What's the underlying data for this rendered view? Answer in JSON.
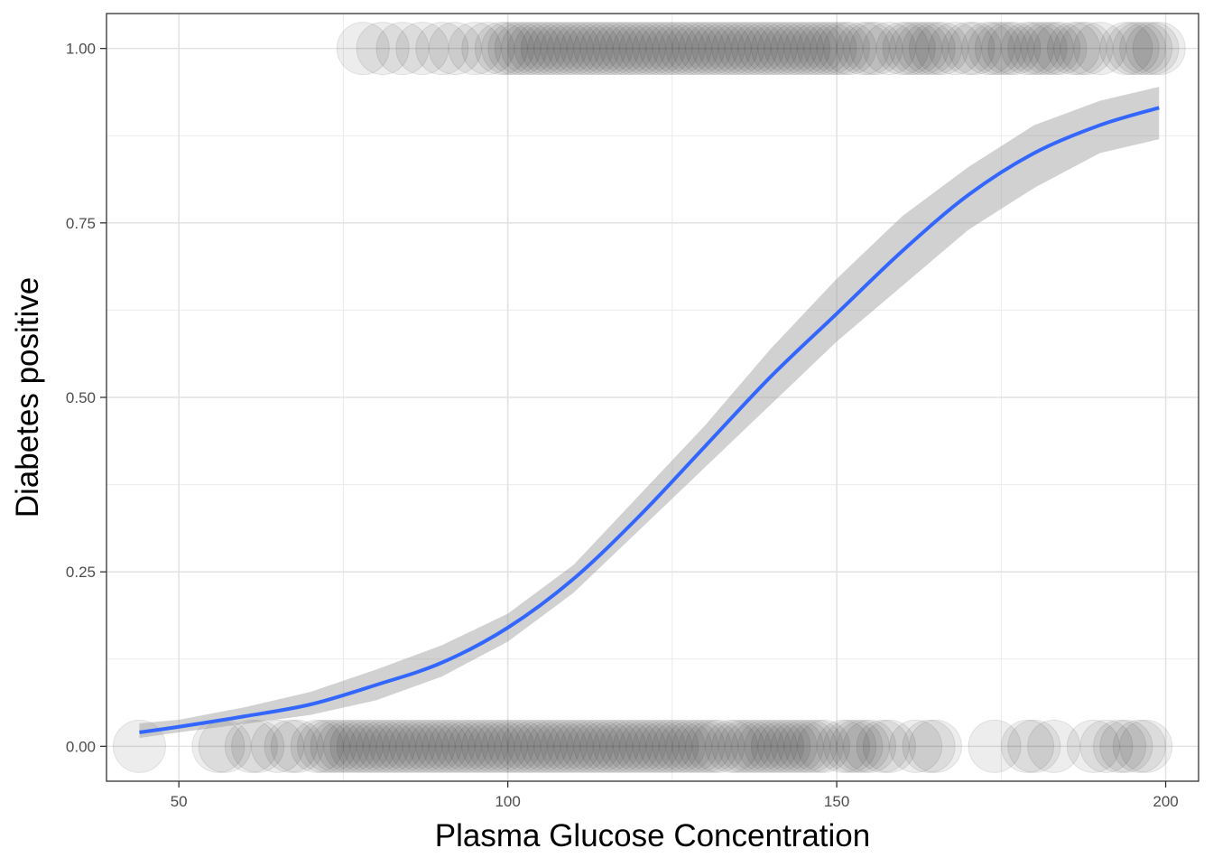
{
  "chart_data": {
    "type": "scatter",
    "title": "",
    "xlabel": "Plasma Glucose Concentration",
    "ylabel": "Diabetes positive",
    "xlim": [
      39,
      205
    ],
    "ylim": [
      -0.05,
      1.05
    ],
    "x_ticks": [
      50,
      100,
      150,
      200
    ],
    "x_tick_labels": [
      "50",
      "100",
      "150",
      "200"
    ],
    "y_ticks": [
      0,
      0.25,
      0.5,
      0.75,
      1
    ],
    "y_tick_labels": [
      "0.00",
      "0.25",
      "0.50",
      "0.75",
      "1.00"
    ],
    "grid": true,
    "legend": "none",
    "series": [
      {
        "kind": "points",
        "y": 1,
        "x": [
          78,
          81,
          84,
          87,
          90,
          92,
          95,
          97,
          99,
          100,
          101,
          102,
          103,
          104,
          105,
          106,
          107,
          108,
          109,
          110,
          111,
          112,
          113,
          114,
          115,
          116,
          117,
          118,
          119,
          120,
          121,
          122,
          123,
          124,
          125,
          126,
          127,
          128,
          129,
          130,
          131,
          132,
          133,
          134,
          135,
          136,
          137,
          138,
          139,
          140,
          141,
          142,
          143,
          144,
          145,
          146,
          147,
          148,
          149,
          150,
          151,
          152,
          154,
          155,
          156,
          158,
          160,
          161,
          162,
          163,
          164,
          165,
          166,
          168,
          170,
          171,
          173,
          174,
          175,
          176,
          177,
          179,
          180,
          181,
          182,
          183,
          184,
          186,
          187,
          188,
          190,
          194,
          195,
          196,
          197,
          198,
          199
        ]
      },
      {
        "kind": "points",
        "y": 0,
        "x": [
          44,
          56,
          57,
          61,
          62,
          65,
          67,
          68,
          71,
          72,
          73,
          74,
          75,
          76,
          77,
          78,
          79,
          80,
          81,
          82,
          83,
          84,
          85,
          86,
          87,
          88,
          89,
          90,
          91,
          92,
          93,
          94,
          95,
          96,
          97,
          98,
          99,
          100,
          101,
          102,
          103,
          104,
          105,
          106,
          107,
          108,
          109,
          110,
          111,
          112,
          113,
          114,
          115,
          116,
          117,
          118,
          119,
          120,
          121,
          122,
          123,
          124,
          125,
          126,
          127,
          128,
          129,
          130,
          131,
          132,
          134,
          135,
          136,
          137,
          138,
          139,
          140,
          141,
          142,
          143,
          144,
          145,
          146,
          147,
          148,
          151,
          152,
          153,
          154,
          155,
          157,
          158,
          162,
          164,
          165,
          174,
          179,
          180,
          183,
          189,
          191,
          193,
          194,
          196,
          197
        ]
      },
      {
        "kind": "fit",
        "name": "",
        "color": "#3366ff",
        "band_color": "#999999",
        "x": [
          44,
          50,
          60,
          70,
          80,
          90,
          100,
          110,
          120,
          130,
          140,
          150,
          160,
          170,
          180,
          190,
          199
        ],
        "y": [
          0.02,
          0.028,
          0.043,
          0.06,
          0.088,
          0.12,
          0.17,
          0.24,
          0.33,
          0.43,
          0.53,
          0.62,
          0.71,
          0.79,
          0.85,
          0.89,
          0.915
        ],
        "ymin": [
          0.012,
          0.02,
          0.032,
          0.045,
          0.066,
          0.1,
          0.15,
          0.22,
          0.31,
          0.4,
          0.49,
          0.58,
          0.66,
          0.74,
          0.8,
          0.85,
          0.87
        ],
        "ymax": [
          0.033,
          0.038,
          0.056,
          0.078,
          0.11,
          0.145,
          0.19,
          0.26,
          0.36,
          0.46,
          0.57,
          0.67,
          0.76,
          0.83,
          0.89,
          0.925,
          0.945
        ]
      }
    ]
  }
}
